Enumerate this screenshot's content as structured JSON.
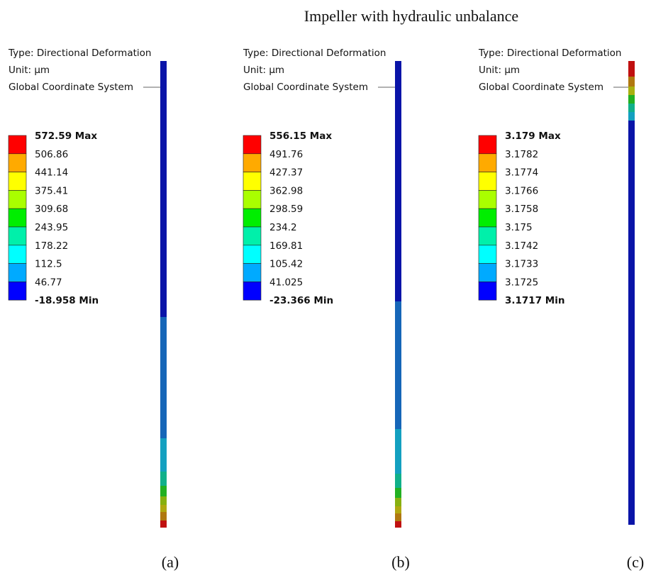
{
  "title": "Impeller with hydraulic unbalance",
  "panels": [
    {
      "type_label": "Type: Directional Deformation",
      "unit_label": "Unit: µm",
      "coordinate_label": "Global Coordinate System",
      "legend": [
        "572.59 Max",
        "506.86",
        "441.14",
        "375.41",
        "309.68",
        "243.95",
        "178.22",
        "112.5",
        "46.77",
        "-18.958 Min"
      ],
      "caption": "(a)"
    },
    {
      "type_label": "Type: Directional Deformation",
      "unit_label": "Unit: µm",
      "coordinate_label": "Global Coordinate System",
      "legend": [
        "556.15 Max",
        "491.76",
        "427.37",
        "362.98",
        "298.59",
        "234.2",
        "169.81",
        "105.42",
        "41.025",
        "-23.366 Min"
      ],
      "caption": "(b)"
    },
    {
      "type_label": "Type: Directional Deformation",
      "unit_label": "Unit: µm",
      "coordinate_label": "Global Coordinate System",
      "legend": [
        "3.179 Max",
        "3.1782",
        "3.1774",
        "3.1766",
        "3.1758",
        "3.175",
        "3.1742",
        "3.1733",
        "3.1725",
        "3.1717 Min"
      ],
      "caption": "(c)"
    }
  ]
}
